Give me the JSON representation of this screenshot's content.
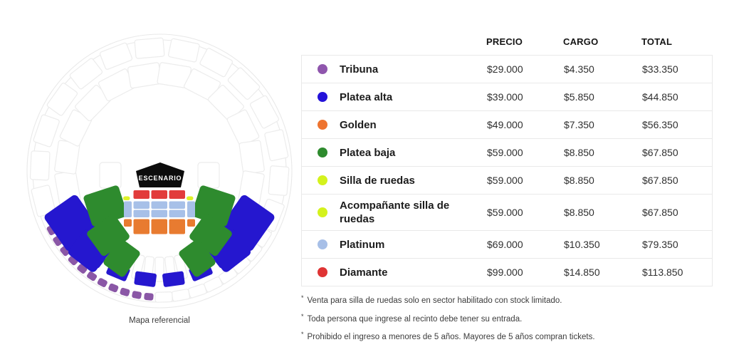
{
  "map": {
    "caption": "Mapa referencial",
    "stage_label": "ESCENARIO",
    "colors": {
      "tribuna": "#8a57a6",
      "platea_alta": "#2517cf",
      "golden": "#e87b30",
      "platea_baja": "#2e8b2e",
      "silla_de_ruedas": "#dff229",
      "platinum": "#a7c0e8",
      "diamante": "#e23c3c"
    }
  },
  "table": {
    "headers": {
      "precio": "PRECIO",
      "cargo": "CARGO",
      "total": "TOTAL"
    },
    "rows": [
      {
        "label": "Tribuna",
        "color": "#8f56ad",
        "precio": "$29.000",
        "cargo": "$4.350",
        "total": "$33.350"
      },
      {
        "label": "Platea alta",
        "color": "#2412d9",
        "precio": "$39.000",
        "cargo": "$5.850",
        "total": "$44.850"
      },
      {
        "label": "Golden",
        "color": "#ee7430",
        "precio": "$49.000",
        "cargo": "$7.350",
        "total": "$56.350"
      },
      {
        "label": "Platea baja",
        "color": "#2e8b2e",
        "precio": "$59.000",
        "cargo": "$8.850",
        "total": "$67.850"
      },
      {
        "label": "Silla de ruedas",
        "color": "#d4f21d",
        "precio": "$59.000",
        "cargo": "$8.850",
        "total": "$67.850"
      },
      {
        "label": "Acompañante silla de ruedas",
        "color": "#d4f21d",
        "precio": "$59.000",
        "cargo": "$8.850",
        "total": "$67.850"
      },
      {
        "label": "Platinum",
        "color": "#a7bfe7",
        "precio": "$69.000",
        "cargo": "$10.350",
        "total": "$79.350"
      },
      {
        "label": "Diamante",
        "color": "#df3434",
        "precio": "$99.000",
        "cargo": "$14.850",
        "total": "$113.850"
      }
    ]
  },
  "footnotes": [
    "Venta para silla de ruedas solo en sector habilitado con stock limitado.",
    "Toda persona que ingrese al recinto debe tener su entrada.",
    "Prohibido el ingreso a menores de 5 años. Mayores de 5 años compran tickets."
  ]
}
